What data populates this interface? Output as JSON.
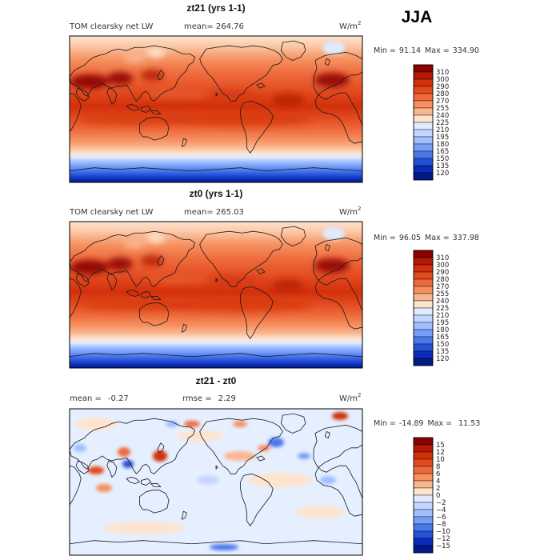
{
  "season": "JJA",
  "panels": [
    {
      "title": "zt21 (yrs 1-1)",
      "left_text": "TOM clearsky net LW",
      "mean_text": "mean= 264.76",
      "units_base": "W/m",
      "units_sup": "2",
      "min_text": "Min =",
      "min_value": "91.14",
      "max_text": "Max =",
      "max_value": "334.90",
      "colorbar": {
        "levels": [
          "310",
          "300",
          "290",
          "280",
          "270",
          "255",
          "240",
          "225",
          "210",
          "195",
          "180",
          "165",
          "150",
          "135",
          "120"
        ],
        "colors": [
          "#8b0000",
          "#b31904",
          "#d2300b",
          "#e24a1f",
          "#ee6a3c",
          "#f6905f",
          "#fbb690",
          "#fde4cf",
          "#dfeaff",
          "#c2d6ff",
          "#9ebeff",
          "#759ff6",
          "#4a78ea",
          "#2550d6",
          "#0a2ab8",
          "#001a86"
        ]
      }
    },
    {
      "title": "zt0 (yrs 1-1)",
      "left_text": "TOM clearsky net LW",
      "mean_text": "mean= 265.03",
      "units_base": "W/m",
      "units_sup": "2",
      "min_text": "Min =",
      "min_value": "96.05",
      "max_text": "Max =",
      "max_value": "337.98",
      "colorbar": {
        "levels": [
          "310",
          "300",
          "290",
          "280",
          "270",
          "255",
          "240",
          "225",
          "210",
          "195",
          "180",
          "165",
          "150",
          "135",
          "120"
        ],
        "colors": [
          "#8b0000",
          "#b31904",
          "#d2300b",
          "#e24a1f",
          "#ee6a3c",
          "#f6905f",
          "#fbb690",
          "#fde4cf",
          "#dfeaff",
          "#c2d6ff",
          "#9ebeff",
          "#759ff6",
          "#4a78ea",
          "#2550d6",
          "#0a2ab8",
          "#001a86"
        ]
      }
    },
    {
      "title": "zt21 - zt0",
      "mean_label": "mean =",
      "mean_value": "-0.27",
      "rmse_label": "rmse =",
      "rmse_value": "2.29",
      "units_base": "W/m",
      "units_sup": "2",
      "min_text": "Min =",
      "min_value": "-14.89",
      "max_text": "Max =",
      "max_value": "11.53",
      "colorbar": {
        "levels": [
          "15",
          "12",
          "10",
          "8",
          "6",
          "4",
          "2",
          "0",
          "−2",
          "−4",
          "−6",
          "−8",
          "−10",
          "−12",
          "−15"
        ],
        "colors": [
          "#8b0000",
          "#b31904",
          "#d2300b",
          "#e24a1f",
          "#ee6a3c",
          "#f6905f",
          "#fbb690",
          "#fde4cf",
          "#dfeaff",
          "#c2d6ff",
          "#9ebeff",
          "#759ff6",
          "#4a78ea",
          "#2550d6",
          "#0a2ab8",
          "#001a86"
        ]
      }
    }
  ],
  "chart_data": [
    {
      "type": "heatmap",
      "title": "zt21 (yrs 1-1)",
      "variable": "TOM clearsky net LW",
      "units": "W/m^2",
      "mean": 264.76,
      "min": 91.14,
      "max": 334.9,
      "contour_levels": [
        120,
        135,
        150,
        165,
        180,
        195,
        210,
        225,
        240,
        255,
        270,
        280,
        290,
        300,
        310
      ]
    },
    {
      "type": "heatmap",
      "title": "zt0 (yrs 1-1)",
      "variable": "TOM clearsky net LW",
      "units": "W/m^2",
      "mean": 265.03,
      "min": 96.05,
      "max": 337.98,
      "contour_levels": [
        120,
        135,
        150,
        165,
        180,
        195,
        210,
        225,
        240,
        255,
        270,
        280,
        290,
        300,
        310
      ]
    },
    {
      "type": "heatmap",
      "title": "zt21 - zt0",
      "units": "W/m^2",
      "mean": -0.27,
      "rmse": 2.29,
      "min": -14.89,
      "max": 11.53,
      "contour_levels": [
        -15,
        -12,
        -10,
        -8,
        -6,
        -4,
        -2,
        0,
        2,
        4,
        6,
        8,
        10,
        12,
        15
      ]
    }
  ]
}
